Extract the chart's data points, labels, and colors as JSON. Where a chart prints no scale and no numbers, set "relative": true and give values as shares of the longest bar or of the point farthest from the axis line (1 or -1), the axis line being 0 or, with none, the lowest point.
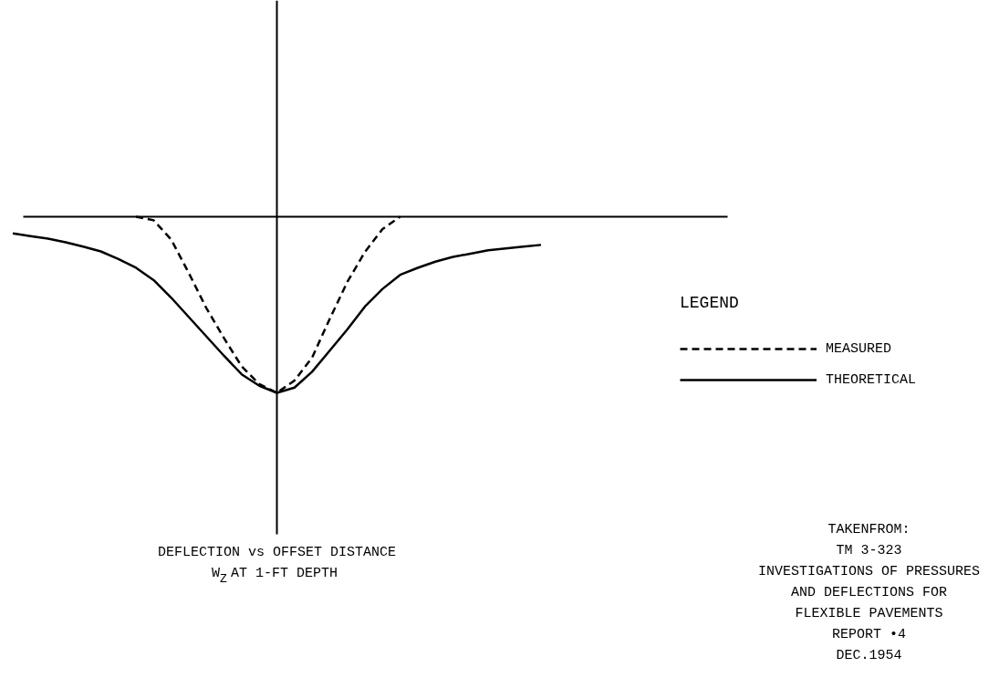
{
  "chart_data": {
    "type": "line",
    "relative": true,
    "title": "DEFLECTION vs OFFSET DISTANCE",
    "subtitle": "W$_{Z}$ AT 1-FT DEPTH",
    "legend_title": "LEGEND",
    "legend": "right",
    "grid": false,
    "marker": "none",
    "annotations": [
      "TAKENFROM:",
      "TM 3-323",
      "INVESTIGATIONS OF PRESSURES",
      "AND DEFLECTIONS FOR",
      "FLEXIBLE PAVEMENTS",
      "REPORT •4",
      "DEC.1954"
    ],
    "categories": [
      null,
      null,
      null,
      null,
      null,
      null,
      null,
      null,
      null,
      null,
      null,
      null,
      null,
      null,
      null,
      null,
      null,
      null,
      null,
      null,
      null,
      null,
      null,
      null,
      null,
      null,
      null,
      null,
      null,
      null,
      null
    ],
    "series": [
      {
        "name": "MEASURED",
        "color": "#000000",
        "line_style": "dashed",
        "values": [
          null,
          null,
          null,
          null,
          null,
          null,
          null,
          0,
          -0.02,
          -0.13,
          -0.32,
          -0.52,
          -0.69,
          -0.85,
          -0.95,
          -1,
          -0.93,
          -0.8,
          -0.58,
          -0.37,
          -0.2,
          -0.07,
          0,
          null,
          null,
          null,
          null,
          null,
          null,
          null,
          null
        ]
      },
      {
        "name": "THEORETICAL",
        "color": "#000000",
        "line_style": "solid",
        "values": [
          -0.095,
          -0.11,
          -0.124,
          -0.145,
          -0.17,
          -0.197,
          -0.24,
          -0.29,
          -0.36,
          -0.46,
          -0.57,
          -0.68,
          -0.79,
          -0.895,
          -0.96,
          -1,
          -0.97,
          -0.88,
          -0.76,
          -0.64,
          -0.51,
          -0.41,
          -0.33,
          -0.29,
          -0.255,
          -0.228,
          -0.21,
          -0.19,
          -0.18,
          -0.17,
          -0.16
        ]
      }
    ]
  }
}
